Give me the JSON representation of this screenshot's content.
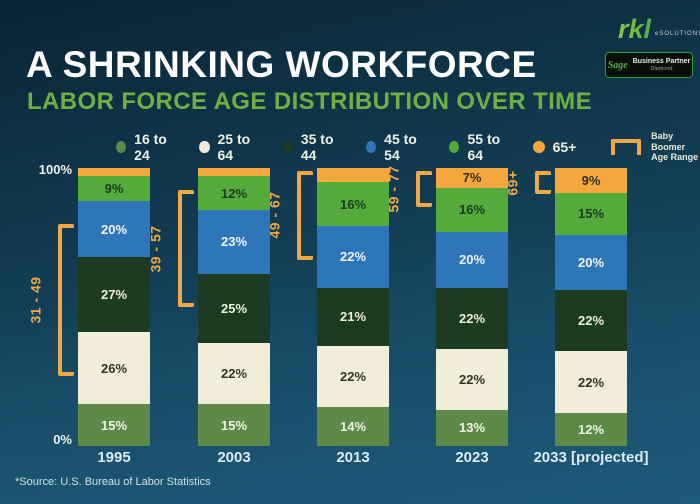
{
  "header": {
    "title": "A SHRINKING WORKFORCE",
    "subtitle": "LABOR FORCE AGE DISTRIBUTION OVER TIME"
  },
  "branding": {
    "logo_text": "rkl",
    "logo_suffix": "eSOLUTIONS",
    "badge_brand": "Sage",
    "badge_label": "Business Partner",
    "badge_tier": "Diamond"
  },
  "legend": {
    "items": [
      {
        "label": "16 to 24",
        "color": "#5d8a48"
      },
      {
        "label": "25 to 64",
        "color": "#f2edd9"
      },
      {
        "label": "35 to 44",
        "color": "#1c3b22"
      },
      {
        "label": "45 to 54",
        "color": "#2e76b8"
      },
      {
        "label": "55 to 64",
        "color": "#54ab3c"
      },
      {
        "label": "65+",
        "color": "#f6a73e"
      }
    ],
    "bracket_label_line1": "Baby Boomer",
    "bracket_label_line2": "Age Range"
  },
  "axis": {
    "top_label": "100%",
    "bottom_label": "0%"
  },
  "source": "*Source: U.S. Bureau of Labor Statistics",
  "chart_data": {
    "type": "bar",
    "stacked": true,
    "unit": "%",
    "title": "A SHRINKING WORKFORCE — LABOR FORCE AGE DISTRIBUTION OVER TIME",
    "categories": [
      "1995",
      "2003",
      "2013",
      "2023",
      "2033 [projected]"
    ],
    "series": [
      {
        "name": "16 to 24",
        "color": "#5d8a48",
        "label_color": "#f2f3e3",
        "values": [
          15,
          15,
          14,
          13,
          12
        ],
        "label_visible": [
          true,
          true,
          true,
          true,
          true
        ]
      },
      {
        "name": "25 to 64",
        "color": "#f2edd9",
        "label_color": "#2f3624",
        "values": [
          26,
          22,
          22,
          22,
          22
        ],
        "label_visible": [
          true,
          true,
          true,
          true,
          true
        ]
      },
      {
        "name": "35 to 44",
        "color": "#1c3b22",
        "label_color": "#eef0d9",
        "values": [
          27,
          25,
          21,
          22,
          22
        ],
        "label_visible": [
          true,
          true,
          true,
          true,
          true
        ]
      },
      {
        "name": "45 to 54",
        "color": "#2e76b8",
        "label_color": "#f2f6f7",
        "values": [
          20,
          23,
          22,
          20,
          20
        ],
        "label_visible": [
          true,
          true,
          true,
          true,
          true
        ]
      },
      {
        "name": "55 to 64",
        "color": "#54ab3c",
        "label_color": "#1d3a21",
        "values": [
          9,
          12,
          16,
          16,
          15
        ],
        "label_visible": [
          true,
          true,
          true,
          true,
          true
        ]
      },
      {
        "name": "65+",
        "color": "#f6a73e",
        "label_color": "#2a301f",
        "values": [
          3,
          3,
          5,
          7,
          9
        ],
        "label_visible": [
          false,
          false,
          false,
          true,
          true
        ]
      }
    ],
    "ylim": [
      0,
      100
    ],
    "legend_position": "top",
    "grid": false,
    "brackets": [
      {
        "category": "1995",
        "label": "31 - 49",
        "from_pct": 25,
        "to_pct": 80
      },
      {
        "category": "2003",
        "label": "39 - 57",
        "from_pct": 50,
        "to_pct": 92
      },
      {
        "category": "2013",
        "label": "49 - 67",
        "from_pct": 67,
        "to_pct": 99
      },
      {
        "category": "2023",
        "label": "59 - 77",
        "from_pct": 86,
        "to_pct": 99
      },
      {
        "category": "2033 [projected]",
        "label": "69+",
        "from_pct": 90.5,
        "to_pct": 99
      }
    ]
  }
}
